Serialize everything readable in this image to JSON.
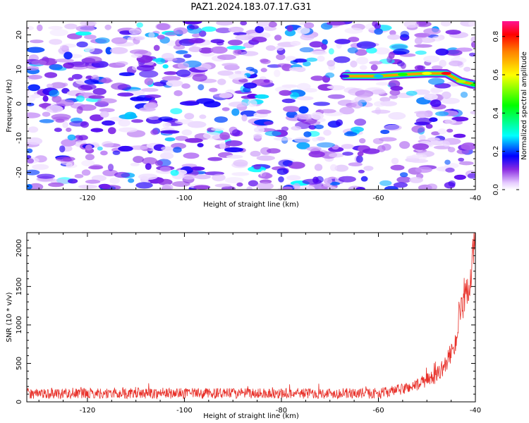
{
  "figure_title": "PAZ1.2024.183.07.17.G31",
  "chart_data": [
    {
      "type": "heatmap",
      "xlabel": "Height of straight line (km)",
      "ylabel": "Frequency (Hz)",
      "xlim": [
        -132.5,
        -40
      ],
      "ylim": [
        -25,
        24
      ],
      "x_ticks": [
        -120,
        -100,
        -80,
        -60,
        -40
      ],
      "y_ticks": [
        -20,
        -10,
        0,
        10,
        20
      ],
      "colorbar": {
        "label": "Normalized spectral amplitude",
        "range": [
          0,
          0.88
        ],
        "ticks": [
          0.0,
          0.2,
          0.4,
          0.6,
          0.8
        ],
        "colormap": [
          "#ffffff",
          "#8a2be2",
          "#0000ff",
          "#00ffff",
          "#00ff00",
          "#ffff00",
          "#ff8000",
          "#ff0000",
          "#ff1493"
        ]
      },
      "noise_level_max": 0.3,
      "signal_track": [
        {
          "x": -67,
          "f": 8.0,
          "amp": 0.2
        },
        {
          "x": -60,
          "f": 8.0,
          "amp": 0.3
        },
        {
          "x": -55,
          "f": 8.5,
          "amp": 0.45
        },
        {
          "x": -50,
          "f": 8.8,
          "amp": 0.6
        },
        {
          "x": -46,
          "f": 8.8,
          "amp": 0.82
        },
        {
          "x": -43,
          "f": 6.5,
          "amp": 0.55
        },
        {
          "x": -40,
          "f": 5.5,
          "amp": 0.45
        }
      ]
    },
    {
      "type": "line",
      "xlabel": "Height of straight line (km)",
      "ylabel": "SNR (10 * v/v)",
      "xlim": [
        -132.5,
        -40
      ],
      "ylim": [
        0,
        2200
      ],
      "x_ticks": [
        -120,
        -100,
        -80,
        -60,
        -40
      ],
      "y_ticks": [
        0,
        500,
        1000,
        1500,
        2000
      ],
      "series": [
        {
          "color": "#e8312a",
          "envelope": [
            {
              "x": -132.5,
              "y": 110
            },
            {
              "x": -60,
              "y": 110
            },
            {
              "x": -56,
              "y": 150
            },
            {
              "x": -52,
              "y": 220
            },
            {
              "x": -48,
              "y": 340
            },
            {
              "x": -46,
              "y": 500
            },
            {
              "x": -44,
              "y": 800
            },
            {
              "x": -43,
              "y": 1150
            },
            {
              "x": -42,
              "y": 1350
            },
            {
              "x": -41,
              "y": 1600
            },
            {
              "x": -40.5,
              "y": 1950
            },
            {
              "x": -40,
              "y": 2050
            }
          ],
          "noise_amplitude": 55
        }
      ]
    }
  ]
}
